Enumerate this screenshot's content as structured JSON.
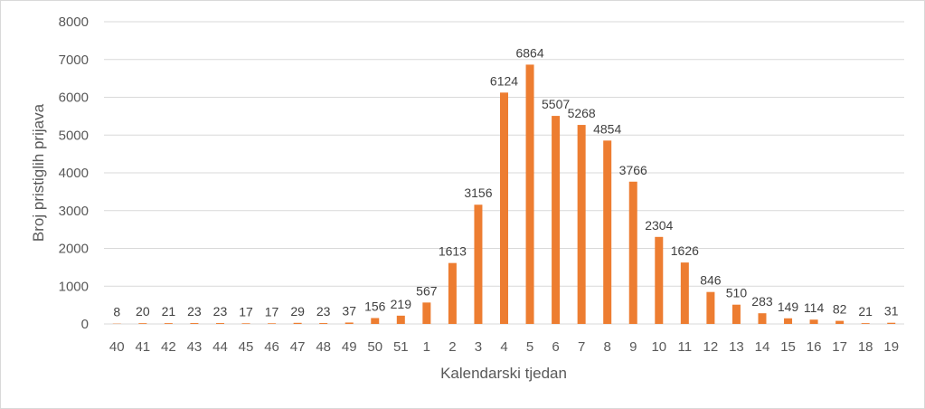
{
  "chart_data": {
    "type": "bar",
    "title": "",
    "xlabel": "Kalendarski tjedan",
    "ylabel": "Broj pristiglih prijava",
    "categories": [
      "40",
      "41",
      "42",
      "43",
      "44",
      "45",
      "46",
      "47",
      "48",
      "49",
      "50",
      "51",
      "1",
      "2",
      "3",
      "4",
      "5",
      "6",
      "7",
      "8",
      "9",
      "10",
      "11",
      "12",
      "13",
      "14",
      "15",
      "16",
      "17",
      "18",
      "19"
    ],
    "values": [
      8,
      20,
      21,
      23,
      23,
      17,
      17,
      29,
      23,
      37,
      156,
      219,
      567,
      1613,
      3156,
      6124,
      6864,
      5507,
      5268,
      4854,
      3766,
      2304,
      1626,
      846,
      510,
      283,
      149,
      114,
      82,
      21,
      31
    ],
    "ylim": [
      0,
      8000
    ],
    "yticks": [
      0,
      1000,
      2000,
      3000,
      4000,
      5000,
      6000,
      7000,
      8000
    ],
    "grid": true,
    "legend": "none",
    "bar_color": "#ED7D31",
    "grid_color": "#D9D9D9"
  }
}
